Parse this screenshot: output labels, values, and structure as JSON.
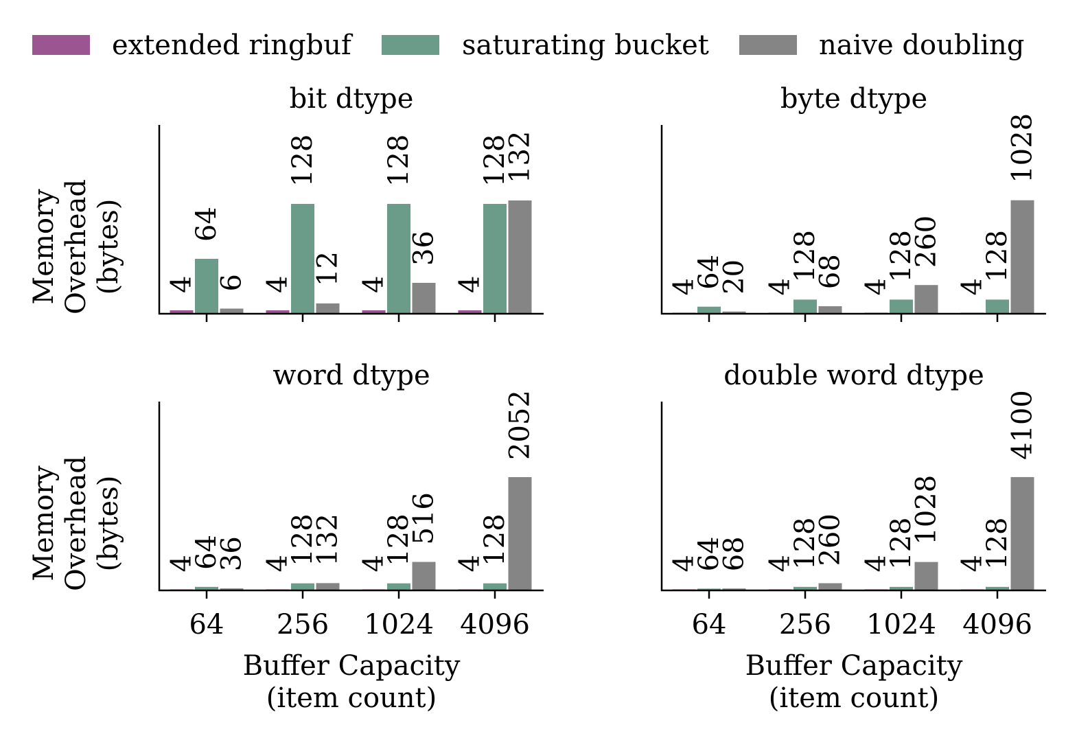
{
  "colors": {
    "extended ringbuf": "#9b5590",
    "saturating bucket": "#6b9b89",
    "naive doubling": "#858585"
  },
  "chart_data": {
    "type": "bar",
    "legend": {
      "placement": "top",
      "entries": [
        "extended ringbuf",
        "saturating bucket",
        "naive doubling"
      ]
    },
    "subplots": [
      {
        "title": "bit dtype",
        "xlabel": "",
        "ylabel": "Memory\nOverhead\n(bytes)",
        "categories": [
          "64",
          "256",
          "1024",
          "4096"
        ],
        "show_xticklabels": false,
        "ylim": [
          0,
          220
        ],
        "series": [
          {
            "name": "extended ringbuf",
            "values": [
              4,
              4,
              4,
              4
            ]
          },
          {
            "name": "saturating bucket",
            "values": [
              64,
              128,
              128,
              128
            ]
          },
          {
            "name": "naive doubling",
            "values": [
              6,
              12,
              36,
              132
            ]
          }
        ]
      },
      {
        "title": "byte dtype",
        "xlabel": "",
        "ylabel": "",
        "categories": [
          "64",
          "256",
          "1024",
          "4096"
        ],
        "show_xticklabels": false,
        "ylim": [
          0,
          1710
        ],
        "series": [
          {
            "name": "extended ringbuf",
            "values": [
              4,
              4,
              4,
              4
            ]
          },
          {
            "name": "saturating bucket",
            "values": [
              64,
              128,
              128,
              128
            ]
          },
          {
            "name": "naive doubling",
            "values": [
              20,
              68,
              260,
              1028
            ]
          }
        ]
      },
      {
        "title": "word dtype",
        "xlabel": "Buffer Capacity\n(item count)",
        "ylabel": "Memory\nOverhead\n(bytes)",
        "categories": [
          "64",
          "256",
          "1024",
          "4096"
        ],
        "show_xticklabels": true,
        "ylim": [
          0,
          3420
        ],
        "series": [
          {
            "name": "extended ringbuf",
            "values": [
              4,
              4,
              4,
              4
            ]
          },
          {
            "name": "saturating bucket",
            "values": [
              64,
              128,
              128,
              128
            ]
          },
          {
            "name": "naive doubling",
            "values": [
              36,
              132,
              516,
              2052
            ]
          }
        ]
      },
      {
        "title": "double word dtype",
        "xlabel": "Buffer Capacity\n(item count)",
        "ylabel": "",
        "categories": [
          "64",
          "256",
          "1024",
          "4096"
        ],
        "show_xticklabels": true,
        "ylim": [
          0,
          6830
        ],
        "series": [
          {
            "name": "extended ringbuf",
            "values": [
              4,
              4,
              4,
              4
            ]
          },
          {
            "name": "saturating bucket",
            "values": [
              64,
              128,
              128,
              128
            ]
          },
          {
            "name": "naive doubling",
            "values": [
              68,
              260,
              1028,
              4100
            ]
          }
        ]
      }
    ]
  }
}
